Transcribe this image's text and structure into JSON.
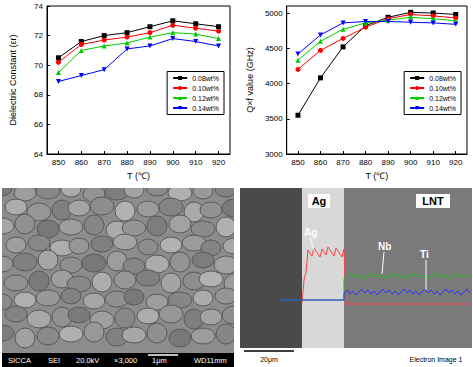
{
  "chart_data": [
    {
      "type": "line",
      "x_label": "T (℃)",
      "y_label": "Dielectric Constant (εr)",
      "x": [
        850,
        860,
        870,
        880,
        890,
        900,
        910,
        920
      ],
      "xlim": [
        845,
        925
      ],
      "xticks": [
        850,
        860,
        870,
        880,
        890,
        900,
        910,
        920
      ],
      "ylim": [
        64,
        74
      ],
      "yticks": [
        64,
        66,
        68,
        70,
        72,
        74
      ],
      "grid": false,
      "legend": "right",
      "series": [
        {
          "name": "0.08wt%",
          "color": "#000000",
          "marker": "square",
          "values": [
            70.5,
            71.6,
            72.0,
            72.2,
            72.6,
            73.0,
            72.8,
            72.6
          ]
        },
        {
          "name": "0.10wt%",
          "color": "#ff0000",
          "marker": "circle",
          "values": [
            70.2,
            71.4,
            71.7,
            71.9,
            72.2,
            72.7,
            72.5,
            72.3
          ]
        },
        {
          "name": "0.12wt%",
          "color": "#00cc00",
          "marker": "triangle",
          "values": [
            69.5,
            71.0,
            71.3,
            71.5,
            71.9,
            72.2,
            72.1,
            71.8
          ]
        },
        {
          "name": "0.14wt%",
          "color": "#0000ff",
          "marker": "triangle-down",
          "values": [
            68.9,
            69.3,
            69.7,
            71.1,
            71.3,
            71.8,
            71.6,
            71.3
          ]
        }
      ]
    },
    {
      "type": "line",
      "x_label": "T (℃)",
      "y_label": "Q×f value (GHz)",
      "x": [
        850,
        860,
        870,
        880,
        890,
        900,
        910,
        920
      ],
      "xlim": [
        845,
        925
      ],
      "xticks": [
        850,
        860,
        870,
        880,
        890,
        900,
        910,
        920
      ],
      "ylim": [
        3000,
        5100
      ],
      "yticks": [
        3000,
        3500,
        4000,
        4500,
        5000
      ],
      "grid": false,
      "legend": "right",
      "series": [
        {
          "name": "0.08wt%",
          "color": "#000000",
          "marker": "square",
          "values": [
            3550,
            4080,
            4520,
            4820,
            4940,
            5010,
            5000,
            4980
          ]
        },
        {
          "name": "0.10wt%",
          "color": "#ff0000",
          "marker": "circle",
          "values": [
            4200,
            4470,
            4640,
            4800,
            4920,
            4980,
            4960,
            4930
          ]
        },
        {
          "name": "0.12wt%",
          "color": "#00cc00",
          "marker": "triangle",
          "values": [
            4330,
            4600,
            4770,
            4860,
            4900,
            4940,
            4920,
            4890
          ]
        },
        {
          "name": "0.14wt%",
          "color": "#0000ff",
          "marker": "triangle-down",
          "values": [
            4420,
            4690,
            4860,
            4880,
            4880,
            4870,
            4860,
            4840
          ]
        }
      ]
    }
  ],
  "sem_image": {
    "footer": [
      "SICCA",
      "SEI",
      "20.0kV",
      "×3,000",
      "1μm",
      "WD11mm"
    ]
  },
  "eds_image": {
    "regions": [
      "Ag",
      "LNT"
    ],
    "traces": [
      {
        "name": "Ag",
        "color": "#ff4040"
      },
      {
        "name": "Nb",
        "color": "#20c020"
      },
      {
        "name": "Ti",
        "color": "#3030ff"
      }
    ],
    "scale_bar": "20μm",
    "caption": "Electron Image 1"
  }
}
